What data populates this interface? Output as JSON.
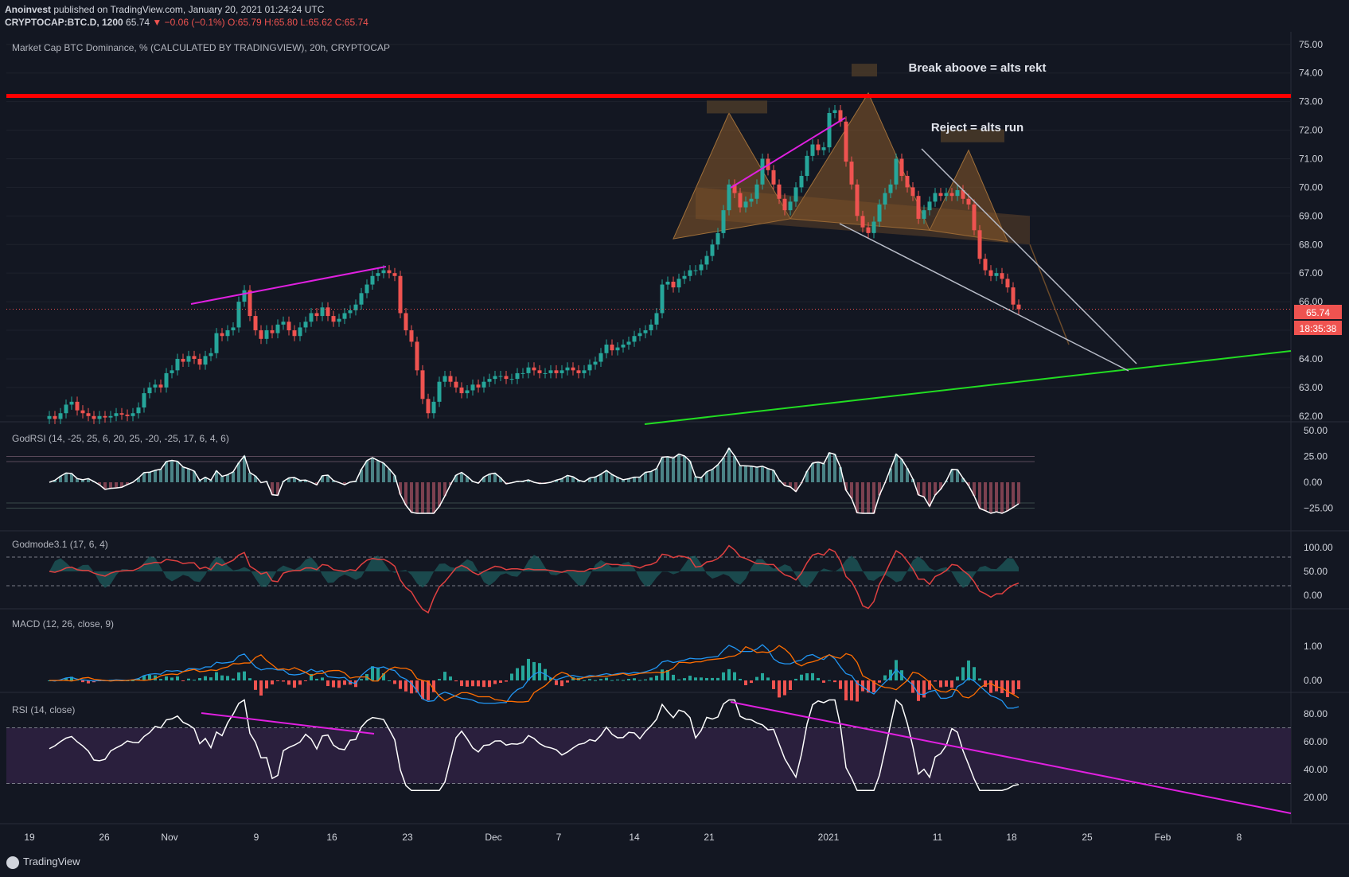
{
  "header": {
    "publisher": "Anoinvest",
    "published_text": "published on TradingView.com, January 20, 2021 01:24:24 UTC",
    "symbol": "CRYPTOCAP:BTC.D, 1200",
    "last": "65.74",
    "change": "▼ −0.06 (−0.1%)",
    "ohlc": "O:65.79 H:65.80 L:65.62 C:65.74"
  },
  "colors": {
    "background": "#131722",
    "up": "#26a69a",
    "down": "#ef5350",
    "resistance": "#ff0000",
    "support": "#22dd22",
    "trendline": "#e020e0",
    "pattern_fill": "#8a5a2a",
    "wedge": "#b8bcc8",
    "rsi_band": "#2a1f3d"
  },
  "price_pane": {
    "title": "Market Cap BTC Dominance, % (CALCULATED BY TRADINGVIEW), 20h, CRYPTOCAP",
    "annotation_break": "Break aboove = alts rekt",
    "annotation_reject": "Reject = alts run",
    "last_price_label": "65.74",
    "countdown_label": "18:35:38",
    "y_ticks": [
      "75.00",
      "74.00",
      "73.00",
      "72.00",
      "71.00",
      "70.00",
      "69.00",
      "68.00",
      "67.00",
      "66.00",
      "65.00",
      "64.00",
      "63.00",
      "62.00"
    ]
  },
  "indicators": {
    "godrsi": {
      "title": "GodRSI (14, -25, 25, 6, 20, 25, -20, -25, 17, 6, 4, 6)",
      "ticks": [
        "50.00",
        "25.00",
        "0.00",
        "−25.00"
      ]
    },
    "godmode": {
      "title": "Godmode3.1 (17, 6, 4)",
      "ticks": [
        "100.00",
        "50.00",
        "0.00"
      ]
    },
    "macd": {
      "title": "MACD (12, 26, close, 9)",
      "ticks": [
        "1.00",
        "0.00"
      ]
    },
    "rsi": {
      "title": "RSI (14, close)",
      "ticks": [
        "80.00",
        "60.00",
        "40.00",
        "20.00"
      ]
    }
  },
  "x_axis": {
    "labels": [
      "19",
      "26",
      "Nov",
      "9",
      "16",
      "23",
      "Dec",
      "7",
      "14",
      "21",
      "2021",
      "11",
      "18",
      "25",
      "Feb",
      "8"
    ]
  },
  "footer": {
    "brand": "TradingView"
  },
  "chart_data": {
    "type": "candlestick",
    "title": "Market Cap BTC Dominance, % (CALCULATED BY TRADINGVIEW), 20h, CRYPTOCAP",
    "ylim": [
      61.8,
      75.3
    ],
    "x_dates_start": "2020-10-18",
    "close": [
      62.0,
      61.9,
      62.1,
      62.4,
      62.5,
      62.2,
      62.1,
      62.0,
      61.9,
      62.0,
      61.95,
      62.0,
      62.1,
      62.05,
      62.0,
      62.1,
      62.3,
      62.8,
      63.0,
      63.1,
      63.0,
      63.5,
      63.6,
      64.0,
      63.9,
      64.1,
      64.0,
      63.8,
      64.1,
      64.2,
      64.9,
      64.8,
      65.0,
      65.1,
      66.0,
      66.4,
      65.5,
      65.0,
      64.7,
      65.0,
      64.9,
      65.2,
      65.3,
      65.0,
      64.8,
      65.1,
      65.3,
      65.6,
      65.5,
      65.8,
      65.5,
      65.3,
      65.4,
      65.6,
      65.7,
      65.9,
      66.3,
      66.6,
      66.9,
      67.0,
      67.1,
      67.0,
      66.9,
      65.6,
      65.0,
      64.6,
      63.6,
      62.6,
      62.1,
      62.5,
      63.2,
      63.4,
      63.2,
      63.0,
      62.8,
      62.9,
      63.1,
      63.0,
      63.2,
      63.3,
      63.4,
      63.4,
      63.3,
      63.3,
      63.5,
      63.5,
      63.7,
      63.6,
      63.5,
      63.5,
      63.6,
      63.5,
      63.6,
      63.7,
      63.6,
      63.5,
      63.6,
      63.8,
      63.9,
      64.2,
      64.5,
      64.3,
      64.4,
      64.5,
      64.6,
      64.8,
      64.9,
      65.0,
      65.2,
      65.6,
      66.6,
      66.7,
      66.5,
      66.8,
      66.9,
      67.1,
      67.1,
      67.3,
      67.6,
      68.0,
      68.4,
      69.2,
      70.1,
      69.8,
      69.3,
      69.5,
      69.6,
      70.1,
      71.0,
      70.6,
      70.1,
      69.6,
      69.2,
      69.5,
      70.0,
      70.4,
      71.1,
      71.5,
      71.3,
      71.4,
      72.6,
      72.7,
      72.3,
      70.9,
      70.1,
      69.0,
      68.6,
      68.4,
      68.8,
      69.4,
      69.8,
      70.1,
      71.0,
      70.4,
      70.0,
      69.7,
      68.9,
      69.2,
      69.5,
      69.8,
      69.7,
      69.8,
      69.7,
      69.9,
      69.6,
      69.4,
      68.5,
      67.5,
      67.1,
      66.9,
      67.0,
      66.8,
      66.5,
      65.9,
      65.74
    ],
    "resistance_level": 73.2,
    "support_line": [
      [
        "2020-12-19",
        61.8
      ],
      [
        "2021-02-11",
        64.3
      ]
    ]
  }
}
